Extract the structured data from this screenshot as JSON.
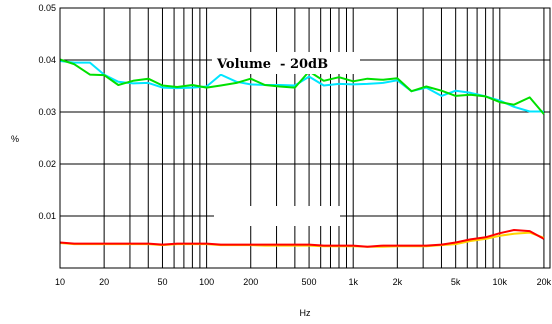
{
  "chart_data": {
    "type": "line",
    "title": "",
    "xlabel": "Hz",
    "ylabel": "%",
    "xscale": "log",
    "xlim": [
      10,
      22000
    ],
    "ylim": [
      0,
      0.05
    ],
    "grid": true,
    "legend": "none",
    "annotation": "Volume  - 20dB",
    "x_ticks": [
      {
        "value": 10,
        "label": "10"
      },
      {
        "value": 20,
        "label": "20"
      },
      {
        "value": 50,
        "label": "50"
      },
      {
        "value": 100,
        "label": "100"
      },
      {
        "value": 200,
        "label": "200"
      },
      {
        "value": 500,
        "label": "500"
      },
      {
        "value": 1000,
        "label": "1k"
      },
      {
        "value": 2000,
        "label": "2k"
      },
      {
        "value": 5000,
        "label": "5k"
      },
      {
        "value": 10000,
        "label": "10k"
      },
      {
        "value": 20000,
        "label": "20k"
      }
    ],
    "y_ticks": [
      {
        "value": 0.01,
        "label": "0.01"
      },
      {
        "value": 0.02,
        "label": "0.02"
      },
      {
        "value": 0.03,
        "label": "0.03"
      },
      {
        "value": 0.04,
        "label": "0.04"
      },
      {
        "value": 0.05,
        "label": "0.05"
      }
    ],
    "series": [
      {
        "color": "#00e5ff",
        "x": [
          10,
          12.5,
          16,
          20,
          25,
          31.5,
          40,
          50,
          63,
          80,
          100,
          125,
          160,
          200,
          250,
          315,
          400,
          500,
          630,
          800,
          1000,
          1250,
          1600,
          2000,
          2500,
          3150,
          4000,
          5000,
          6300,
          8000,
          10000,
          12500,
          16000,
          20000
        ],
        "values": [
          0.0398,
          0.0395,
          0.0395,
          0.0372,
          0.0358,
          0.0355,
          0.0356,
          0.0347,
          0.0346,
          0.0347,
          0.0349,
          0.0372,
          0.0358,
          0.0353,
          0.0352,
          0.0352,
          0.0351,
          0.0368,
          0.0351,
          0.0354,
          0.0353,
          0.0354,
          0.0356,
          0.0361,
          0.034,
          0.0347,
          0.0331,
          0.0341,
          0.0337,
          0.033,
          0.0322,
          0.031,
          0.0301,
          0.0301
        ]
      },
      {
        "color": "#00e000",
        "x": [
          10,
          12.5,
          16,
          20,
          25,
          31.5,
          40,
          50,
          63,
          80,
          100,
          125,
          160,
          200,
          250,
          315,
          400,
          500,
          630,
          800,
          1000,
          1250,
          1600,
          2000,
          2500,
          3150,
          4000,
          5000,
          6300,
          8000,
          10000,
          12500,
          16000,
          20000
        ],
        "values": [
          0.0401,
          0.0392,
          0.0372,
          0.0371,
          0.0352,
          0.036,
          0.0364,
          0.0351,
          0.0348,
          0.0352,
          0.0347,
          0.0351,
          0.0356,
          0.0364,
          0.0352,
          0.0349,
          0.0347,
          0.0378,
          0.036,
          0.0367,
          0.0359,
          0.0364,
          0.0362,
          0.0365,
          0.034,
          0.0349,
          0.0341,
          0.0331,
          0.0333,
          0.033,
          0.0319,
          0.0314,
          0.0328,
          0.0296
        ]
      },
      {
        "color": "#ffd400",
        "x": [
          10,
          12.5,
          16,
          20,
          25,
          31.5,
          40,
          50,
          63,
          80,
          100,
          125,
          160,
          200,
          250,
          315,
          400,
          500,
          630,
          800,
          1000,
          1250,
          1600,
          2000,
          2500,
          3150,
          4000,
          5000,
          6300,
          8000,
          10000,
          12500,
          16000,
          20000
        ],
        "values": [
          0.0048,
          0.0046,
          0.0046,
          0.0046,
          0.0046,
          0.0046,
          0.0046,
          0.0044,
          0.0046,
          0.0046,
          0.0046,
          0.0044,
          0.0044,
          0.0044,
          0.0043,
          0.0043,
          0.0043,
          0.0043,
          0.0042,
          0.0042,
          0.0042,
          0.0041,
          0.0041,
          0.0042,
          0.0042,
          0.0042,
          0.0044,
          0.0046,
          0.0052,
          0.0056,
          0.0062,
          0.0066,
          0.0068,
          0.0058
        ]
      },
      {
        "color": "#ff0000",
        "x": [
          10,
          12.5,
          16,
          20,
          25,
          31.5,
          40,
          50,
          63,
          80,
          100,
          125,
          160,
          200,
          250,
          315,
          400,
          500,
          630,
          800,
          1000,
          1250,
          1600,
          2000,
          2500,
          3150,
          4000,
          5000,
          6300,
          8000,
          10000,
          12500,
          16000,
          20000
        ],
        "values": [
          0.0049,
          0.0047,
          0.0047,
          0.0047,
          0.0047,
          0.0047,
          0.0047,
          0.0045,
          0.0047,
          0.0047,
          0.0047,
          0.0045,
          0.0045,
          0.0045,
          0.0045,
          0.0045,
          0.0045,
          0.0045,
          0.0043,
          0.0043,
          0.0043,
          0.0041,
          0.0043,
          0.0043,
          0.0043,
          0.0043,
          0.0045,
          0.0049,
          0.0055,
          0.0059,
          0.0067,
          0.0073,
          0.0071,
          0.0056
        ]
      }
    ]
  }
}
